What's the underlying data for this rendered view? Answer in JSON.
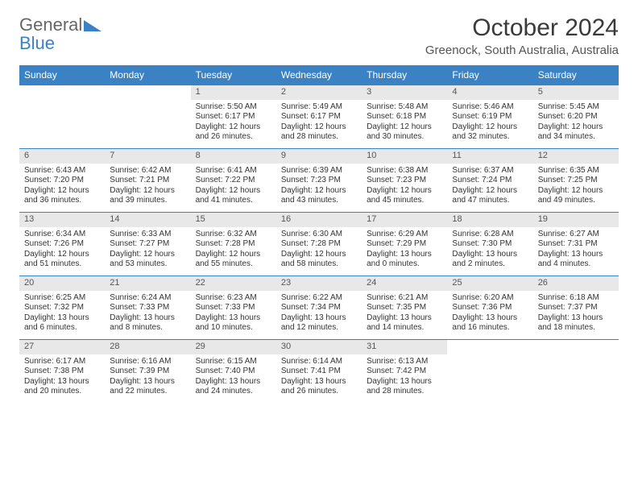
{
  "brand": {
    "part1": "General",
    "part2": "Blue"
  },
  "title": {
    "month": "October 2024",
    "location": "Greenock, South Australia, Australia"
  },
  "colors": {
    "header_bg": "#3b82c4",
    "header_text": "#ffffff",
    "daynum_bg": "#e8e8e8",
    "border": "#3b82c4",
    "body_text": "#333333",
    "page_bg": "#ffffff"
  },
  "day_labels": [
    "Sunday",
    "Monday",
    "Tuesday",
    "Wednesday",
    "Thursday",
    "Friday",
    "Saturday"
  ],
  "weeks": [
    [
      null,
      null,
      {
        "n": "1",
        "sr": "Sunrise: 5:50 AM",
        "ss": "Sunset: 6:17 PM",
        "d1": "Daylight: 12 hours",
        "d2": "and 26 minutes."
      },
      {
        "n": "2",
        "sr": "Sunrise: 5:49 AM",
        "ss": "Sunset: 6:17 PM",
        "d1": "Daylight: 12 hours",
        "d2": "and 28 minutes."
      },
      {
        "n": "3",
        "sr": "Sunrise: 5:48 AM",
        "ss": "Sunset: 6:18 PM",
        "d1": "Daylight: 12 hours",
        "d2": "and 30 minutes."
      },
      {
        "n": "4",
        "sr": "Sunrise: 5:46 AM",
        "ss": "Sunset: 6:19 PM",
        "d1": "Daylight: 12 hours",
        "d2": "and 32 minutes."
      },
      {
        "n": "5",
        "sr": "Sunrise: 5:45 AM",
        "ss": "Sunset: 6:20 PM",
        "d1": "Daylight: 12 hours",
        "d2": "and 34 minutes."
      }
    ],
    [
      {
        "n": "6",
        "sr": "Sunrise: 6:43 AM",
        "ss": "Sunset: 7:20 PM",
        "d1": "Daylight: 12 hours",
        "d2": "and 36 minutes."
      },
      {
        "n": "7",
        "sr": "Sunrise: 6:42 AM",
        "ss": "Sunset: 7:21 PM",
        "d1": "Daylight: 12 hours",
        "d2": "and 39 minutes."
      },
      {
        "n": "8",
        "sr": "Sunrise: 6:41 AM",
        "ss": "Sunset: 7:22 PM",
        "d1": "Daylight: 12 hours",
        "d2": "and 41 minutes."
      },
      {
        "n": "9",
        "sr": "Sunrise: 6:39 AM",
        "ss": "Sunset: 7:23 PM",
        "d1": "Daylight: 12 hours",
        "d2": "and 43 minutes."
      },
      {
        "n": "10",
        "sr": "Sunrise: 6:38 AM",
        "ss": "Sunset: 7:23 PM",
        "d1": "Daylight: 12 hours",
        "d2": "and 45 minutes."
      },
      {
        "n": "11",
        "sr": "Sunrise: 6:37 AM",
        "ss": "Sunset: 7:24 PM",
        "d1": "Daylight: 12 hours",
        "d2": "and 47 minutes."
      },
      {
        "n": "12",
        "sr": "Sunrise: 6:35 AM",
        "ss": "Sunset: 7:25 PM",
        "d1": "Daylight: 12 hours",
        "d2": "and 49 minutes."
      }
    ],
    [
      {
        "n": "13",
        "sr": "Sunrise: 6:34 AM",
        "ss": "Sunset: 7:26 PM",
        "d1": "Daylight: 12 hours",
        "d2": "and 51 minutes."
      },
      {
        "n": "14",
        "sr": "Sunrise: 6:33 AM",
        "ss": "Sunset: 7:27 PM",
        "d1": "Daylight: 12 hours",
        "d2": "and 53 minutes."
      },
      {
        "n": "15",
        "sr": "Sunrise: 6:32 AM",
        "ss": "Sunset: 7:28 PM",
        "d1": "Daylight: 12 hours",
        "d2": "and 55 minutes."
      },
      {
        "n": "16",
        "sr": "Sunrise: 6:30 AM",
        "ss": "Sunset: 7:28 PM",
        "d1": "Daylight: 12 hours",
        "d2": "and 58 minutes."
      },
      {
        "n": "17",
        "sr": "Sunrise: 6:29 AM",
        "ss": "Sunset: 7:29 PM",
        "d1": "Daylight: 13 hours",
        "d2": "and 0 minutes."
      },
      {
        "n": "18",
        "sr": "Sunrise: 6:28 AM",
        "ss": "Sunset: 7:30 PM",
        "d1": "Daylight: 13 hours",
        "d2": "and 2 minutes."
      },
      {
        "n": "19",
        "sr": "Sunrise: 6:27 AM",
        "ss": "Sunset: 7:31 PM",
        "d1": "Daylight: 13 hours",
        "d2": "and 4 minutes."
      }
    ],
    [
      {
        "n": "20",
        "sr": "Sunrise: 6:25 AM",
        "ss": "Sunset: 7:32 PM",
        "d1": "Daylight: 13 hours",
        "d2": "and 6 minutes."
      },
      {
        "n": "21",
        "sr": "Sunrise: 6:24 AM",
        "ss": "Sunset: 7:33 PM",
        "d1": "Daylight: 13 hours",
        "d2": "and 8 minutes."
      },
      {
        "n": "22",
        "sr": "Sunrise: 6:23 AM",
        "ss": "Sunset: 7:33 PM",
        "d1": "Daylight: 13 hours",
        "d2": "and 10 minutes."
      },
      {
        "n": "23",
        "sr": "Sunrise: 6:22 AM",
        "ss": "Sunset: 7:34 PM",
        "d1": "Daylight: 13 hours",
        "d2": "and 12 minutes."
      },
      {
        "n": "24",
        "sr": "Sunrise: 6:21 AM",
        "ss": "Sunset: 7:35 PM",
        "d1": "Daylight: 13 hours",
        "d2": "and 14 minutes."
      },
      {
        "n": "25",
        "sr": "Sunrise: 6:20 AM",
        "ss": "Sunset: 7:36 PM",
        "d1": "Daylight: 13 hours",
        "d2": "and 16 minutes."
      },
      {
        "n": "26",
        "sr": "Sunrise: 6:18 AM",
        "ss": "Sunset: 7:37 PM",
        "d1": "Daylight: 13 hours",
        "d2": "and 18 minutes."
      }
    ],
    [
      {
        "n": "27",
        "sr": "Sunrise: 6:17 AM",
        "ss": "Sunset: 7:38 PM",
        "d1": "Daylight: 13 hours",
        "d2": "and 20 minutes."
      },
      {
        "n": "28",
        "sr": "Sunrise: 6:16 AM",
        "ss": "Sunset: 7:39 PM",
        "d1": "Daylight: 13 hours",
        "d2": "and 22 minutes."
      },
      {
        "n": "29",
        "sr": "Sunrise: 6:15 AM",
        "ss": "Sunset: 7:40 PM",
        "d1": "Daylight: 13 hours",
        "d2": "and 24 minutes."
      },
      {
        "n": "30",
        "sr": "Sunrise: 6:14 AM",
        "ss": "Sunset: 7:41 PM",
        "d1": "Daylight: 13 hours",
        "d2": "and 26 minutes."
      },
      {
        "n": "31",
        "sr": "Sunrise: 6:13 AM",
        "ss": "Sunset: 7:42 PM",
        "d1": "Daylight: 13 hours",
        "d2": "and 28 minutes."
      },
      null,
      null
    ]
  ]
}
